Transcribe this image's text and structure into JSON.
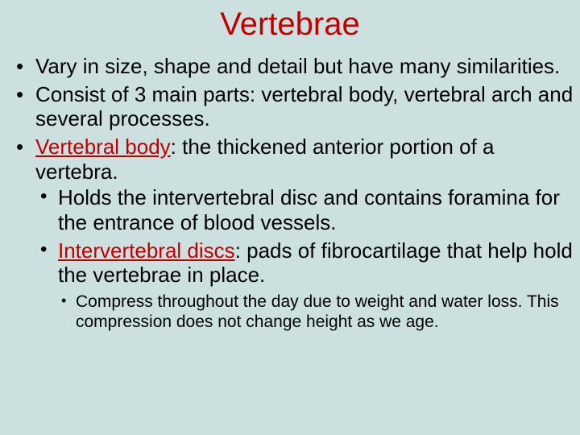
{
  "title": {
    "text": "Vertebrae",
    "color": "#c00000",
    "fontsize": 40
  },
  "background_color": "#cce0e0",
  "body_text_color": "#000000",
  "accent_color": "#c00000",
  "body_fontsize": 26,
  "sub_fontsize": 21,
  "bullets": [
    {
      "runs": [
        {
          "text": "Vary in size, shape and detail but have many similarities."
        }
      ]
    },
    {
      "runs": [
        {
          "text": "Consist of 3 main parts: vertebral body, vertebral arch and several processes."
        }
      ]
    },
    {
      "runs": [
        {
          "text": "Vertebral body",
          "color": "#c00000",
          "underline": true
        },
        {
          "text": ": the thickened anterior portion of a vertebra."
        }
      ],
      "children": [
        {
          "runs": [
            {
              "text": "Holds the intervertebral disc and contains foramina for the entrance of blood vessels."
            }
          ]
        },
        {
          "runs": [
            {
              "text": "Intervertebral discs",
              "color": "#c00000",
              "underline": true
            },
            {
              "text": ": pads of fibrocartilage that help hold the vertebrae in place."
            }
          ],
          "children": [
            {
              "runs": [
                {
                  "text": "Compress throughout the day due to weight and water loss. This compression does not change height as we age."
                }
              ]
            }
          ]
        }
      ]
    }
  ]
}
